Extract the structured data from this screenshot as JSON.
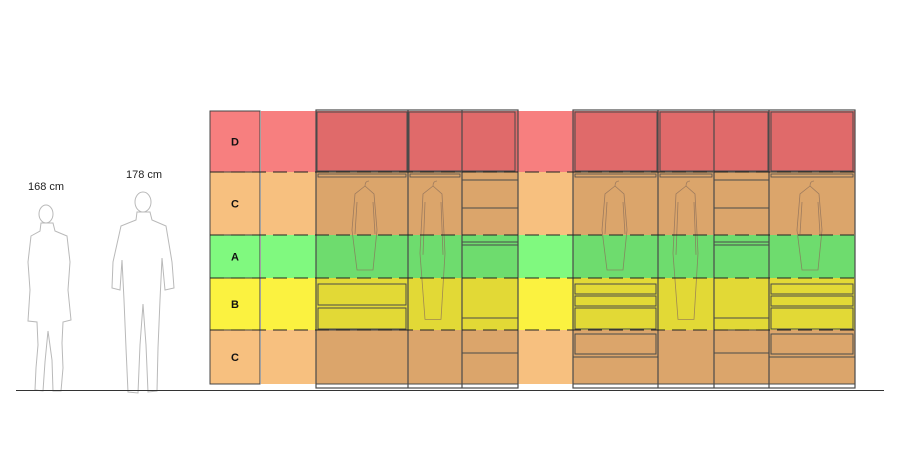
{
  "people": {
    "short_height": "168 cm",
    "tall_height": "178 cm"
  },
  "zones": [
    {
      "letter": "D",
      "color": "#f77f7f",
      "cabinet_color": "#e06a6a"
    },
    {
      "letter": "C",
      "color": "#f7c07f",
      "cabinet_color": "#dba56b"
    },
    {
      "letter": "A",
      "color": "#80f97f",
      "cabinet_color": "#6edc6e"
    },
    {
      "letter": "B",
      "color": "#fbf240",
      "cabinet_color": "#e2d936"
    },
    {
      "letter": "C",
      "color": "#f7c07f",
      "cabinet_color": "#dba56b"
    }
  ],
  "colors": {
    "outline": "#4a4a4a",
    "silhouette": "#b9b9b9",
    "floor": "#333333"
  }
}
